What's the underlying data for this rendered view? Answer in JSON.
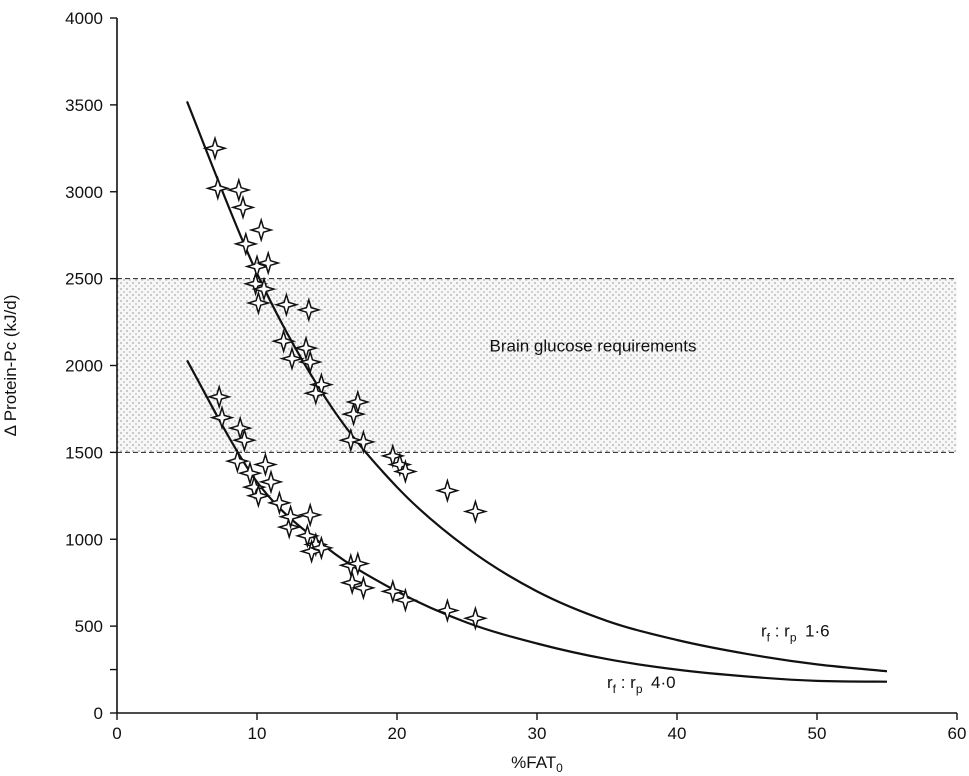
{
  "chart_data": {
    "type": "scatter",
    "xlabel": "%FAT",
    "xlabel_sub": "0",
    "ylabel": "Δ Protein-Pc  (kJ/d)",
    "xlim": [
      0,
      60
    ],
    "ylim": [
      0,
      4000
    ],
    "x_ticks": [
      0,
      10,
      20,
      30,
      40,
      50,
      60
    ],
    "y_ticks": [
      0,
      500,
      1000,
      1500,
      2000,
      2500,
      3000,
      3500,
      4000
    ],
    "y_minor_ticks": [
      250
    ],
    "grid": false,
    "colors": {
      "line": "#111111",
      "band": "#e8e8e8",
      "marker_fill": "#ffffff"
    },
    "band": {
      "y0": 1500,
      "y1": 2500,
      "label": "Brain glucose requirements",
      "label_x": 34,
      "label_y": 2080
    },
    "series": [
      {
        "label": {
          "main": "r",
          "sub1": "f",
          "mid": " : r",
          "sub2": "p",
          "value": "1·6",
          "x": 46,
          "y": 440
        },
        "points": [
          [
            7,
            3250
          ],
          [
            7.2,
            3020
          ],
          [
            8.7,
            3010
          ],
          [
            9,
            2910
          ],
          [
            9.2,
            2700
          ],
          [
            10.3,
            2780
          ],
          [
            10,
            2570
          ],
          [
            10.8,
            2590
          ],
          [
            9.9,
            2470
          ],
          [
            10.1,
            2360
          ],
          [
            10.5,
            2440
          ],
          [
            12.1,
            2350
          ],
          [
            13.7,
            2320
          ],
          [
            11.9,
            2140
          ],
          [
            12.5,
            2040
          ],
          [
            13.5,
            2100
          ],
          [
            13.8,
            2020
          ],
          [
            14.6,
            1890
          ],
          [
            14.2,
            1840
          ],
          [
            16.9,
            1720
          ],
          [
            17.2,
            1790
          ],
          [
            16.7,
            1570
          ],
          [
            17.6,
            1560
          ],
          [
            19.7,
            1480
          ],
          [
            20.2,
            1430
          ],
          [
            20.6,
            1390
          ],
          [
            23.6,
            1280
          ],
          [
            25.6,
            1160
          ]
        ],
        "curve": [
          [
            5,
            3520
          ],
          [
            10,
            2530
          ],
          [
            15,
            1800
          ],
          [
            20,
            1300
          ],
          [
            25,
            950
          ],
          [
            30,
            700
          ],
          [
            35,
            530
          ],
          [
            40,
            420
          ],
          [
            45,
            340
          ],
          [
            50,
            280
          ],
          [
            55,
            240
          ]
        ]
      },
      {
        "label": {
          "main": "r",
          "sub1": "f",
          "mid": " : r",
          "sub2": "p",
          "value": "4·0",
          "x": 35,
          "y": 145
        },
        "points": [
          [
            7.3,
            1820
          ],
          [
            7.5,
            1700
          ],
          [
            8.8,
            1640
          ],
          [
            9.1,
            1570
          ],
          [
            8.6,
            1450
          ],
          [
            9.5,
            1380
          ],
          [
            9.8,
            1300
          ],
          [
            10.1,
            1250
          ],
          [
            10.6,
            1430
          ],
          [
            11,
            1330
          ],
          [
            11.6,
            1210
          ],
          [
            12.3,
            1070
          ],
          [
            12.4,
            1130
          ],
          [
            13.8,
            1140
          ],
          [
            13.6,
            1020
          ],
          [
            14.2,
            970
          ],
          [
            13.9,
            930
          ],
          [
            14.6,
            950
          ],
          [
            16.7,
            850
          ],
          [
            17.2,
            860
          ],
          [
            16.8,
            750
          ],
          [
            17.6,
            720
          ],
          [
            19.7,
            700
          ],
          [
            20.6,
            650
          ],
          [
            23.6,
            590
          ],
          [
            25.6,
            545
          ]
        ],
        "curve": [
          [
            5,
            2030
          ],
          [
            10,
            1330
          ],
          [
            15,
            950
          ],
          [
            20,
            700
          ],
          [
            25,
            520
          ],
          [
            30,
            400
          ],
          [
            35,
            310
          ],
          [
            40,
            250
          ],
          [
            45,
            210
          ],
          [
            50,
            185
          ],
          [
            55,
            180
          ]
        ]
      }
    ]
  }
}
